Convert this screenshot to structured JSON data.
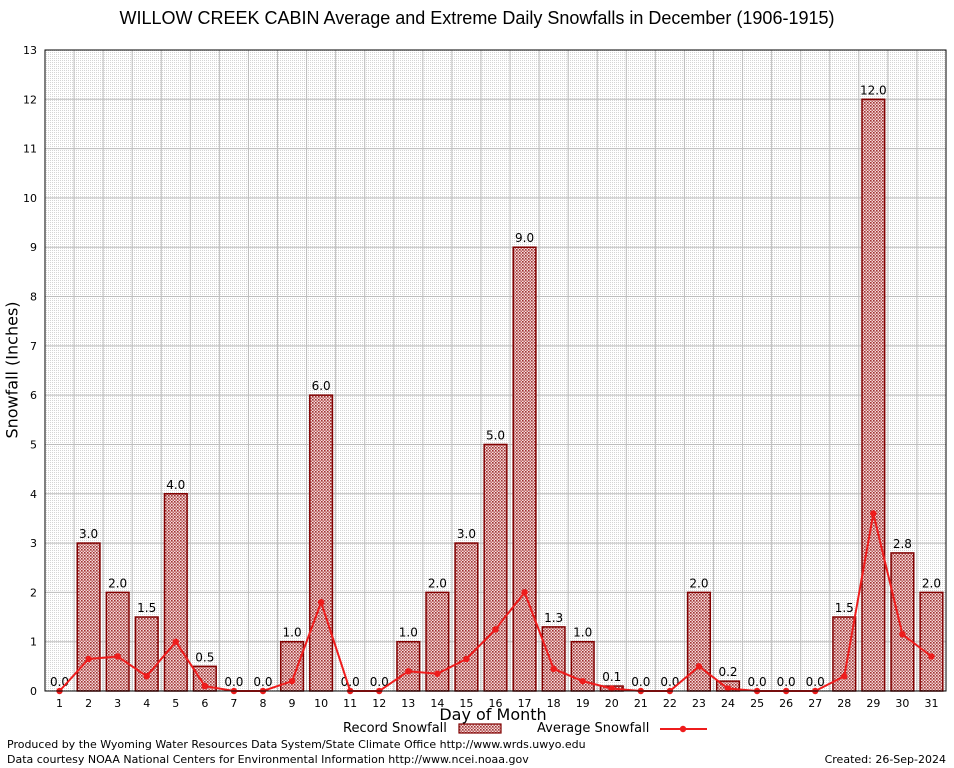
{
  "chart_data": {
    "type": "bar",
    "title": "WILLOW CREEK CABIN Average and Extreme Daily Snowfalls in December (1906-1915)",
    "xlabel": "Day of Month",
    "ylabel": "Snowfall (Inches)",
    "ylim": [
      0,
      13
    ],
    "yticks": [
      "0",
      "1",
      "2",
      "3",
      "4",
      "5",
      "6",
      "7",
      "8",
      "9",
      "10",
      "11",
      "12",
      "13"
    ],
    "categories": [
      "1",
      "2",
      "3",
      "4",
      "5",
      "6",
      "7",
      "8",
      "9",
      "10",
      "11",
      "12",
      "13",
      "14",
      "15",
      "16",
      "17",
      "18",
      "19",
      "20",
      "21",
      "22",
      "23",
      "24",
      "25",
      "26",
      "27",
      "28",
      "29",
      "30",
      "31"
    ],
    "series": [
      {
        "name": "Record Snowfall",
        "type": "bar",
        "values": [
          0.0,
          3.0,
          2.0,
          1.5,
          4.0,
          0.5,
          0.0,
          0.0,
          1.0,
          6.0,
          0.0,
          0.0,
          1.0,
          2.0,
          3.0,
          5.0,
          9.0,
          1.3,
          1.0,
          0.1,
          0.0,
          0.0,
          2.0,
          0.2,
          0.0,
          0.0,
          0.0,
          1.5,
          12.0,
          2.8,
          2.0
        ],
        "labels": [
          "0.0",
          "3.0",
          "2.0",
          "1.5",
          "4.0",
          "0.5",
          "0.0",
          "0.0",
          "1.0",
          "6.0",
          "0.0",
          "0.0",
          "1.0",
          "2.0",
          "3.0",
          "5.0",
          "9.0",
          "1.3",
          "1.0",
          "0.1",
          "0.0",
          "0.0",
          "2.0",
          "0.2",
          "0.0",
          "0.0",
          "0.0",
          "1.5",
          "12.0",
          "2.8",
          "2.0"
        ]
      },
      {
        "name": "Average Snowfall",
        "type": "line",
        "values": [
          0.0,
          0.65,
          0.7,
          0.3,
          1.0,
          0.1,
          0.0,
          0.0,
          0.2,
          1.8,
          0.0,
          0.0,
          0.4,
          0.35,
          0.65,
          1.25,
          2.0,
          0.45,
          0.2,
          0.05,
          0.0,
          0.0,
          0.5,
          0.05,
          0.0,
          0.0,
          0.0,
          0.3,
          3.6,
          1.15,
          0.7
        ]
      }
    ],
    "legend": {
      "position": "bottom",
      "record_label": "Record Snowfall",
      "average_label": "Average Snowfall"
    },
    "colors": {
      "bar_fill": "#b04848",
      "bar_stroke": "#800000",
      "line": "#ee1c1c",
      "grid": "#bdbdbd"
    }
  },
  "footer": {
    "produced_by": "Produced by the Wyoming Water Resources Data System/State Climate Office http://www.wrds.uwyo.edu",
    "courtesy": "Data courtesy NOAA National Centers for Environmental Information http://www.ncei.noaa.gov",
    "created": "Created:  26-Sep-2024"
  }
}
